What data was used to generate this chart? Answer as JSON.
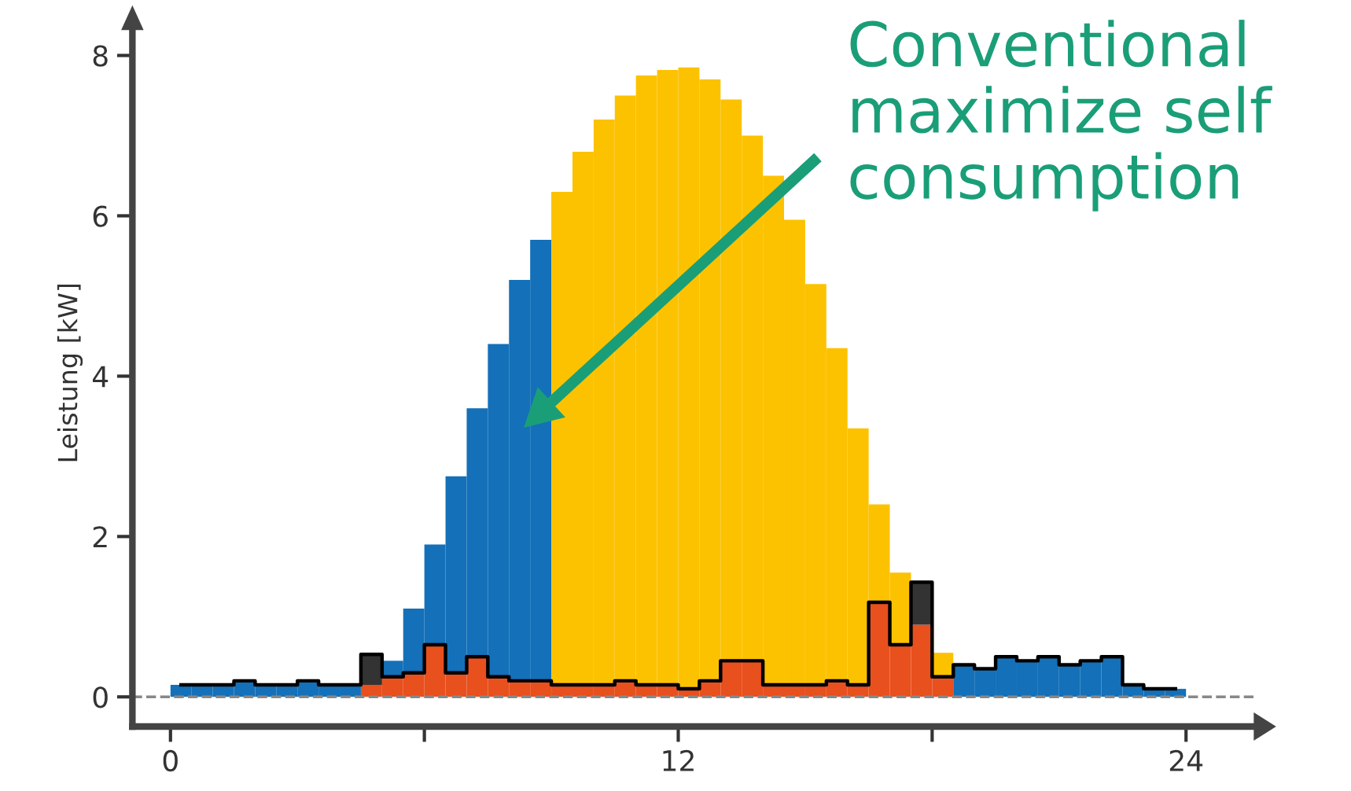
{
  "chart_data": {
    "type": "bar",
    "stacked": true,
    "ylabel": "Leistung [kW]",
    "x": [
      0.25,
      0.75,
      1.25,
      1.75,
      2.25,
      2.75,
      3.25,
      3.75,
      4.25,
      4.75,
      5.25,
      5.75,
      6.25,
      6.75,
      7.25,
      7.75,
      8.25,
      8.75,
      9.25,
      9.75,
      10.25,
      10.75,
      11.25,
      11.75,
      12.25,
      12.75,
      13.25,
      13.75,
      14.25,
      14.75,
      15.25,
      15.75,
      16.25,
      16.75,
      17.25,
      17.75,
      18.25,
      18.75,
      19.25,
      19.75,
      20.25,
      20.75,
      21.25,
      21.75,
      22.25,
      22.75,
      23.25,
      23.75
    ],
    "series": [
      {
        "color": "#e8501e",
        "values": [
          null,
          null,
          null,
          null,
          null,
          null,
          null,
          null,
          null,
          0.15,
          0.25,
          0.3,
          0.65,
          0.3,
          0.5,
          0.25,
          0.2,
          0.2,
          0.15,
          0.15,
          0.15,
          0.2,
          0.15,
          0.15,
          0.1,
          0.2,
          0.45,
          0.45,
          0.15,
          0.15,
          0.15,
          0.2,
          0.15,
          1.18,
          0.65,
          0.9,
          0.25,
          null,
          null,
          null,
          null,
          null,
          null,
          null,
          null,
          null,
          null,
          null
        ]
      },
      {
        "color": "#1470b8",
        "values": [
          0.15,
          0.15,
          0.15,
          0.2,
          0.15,
          0.15,
          0.2,
          0.15,
          0.15,
          null,
          0.2,
          0.8,
          1.25,
          2.45,
          3.1,
          4.15,
          5.0,
          5.5,
          null,
          null,
          null,
          null,
          null,
          null,
          null,
          null,
          null,
          null,
          null,
          null,
          null,
          null,
          null,
          null,
          null,
          null,
          null,
          0.4,
          0.35,
          0.5,
          0.45,
          0.5,
          0.4,
          0.45,
          0.5,
          0.15,
          0.1,
          0.1
        ]
      },
      {
        "color": "#fcc200",
        "values": [
          null,
          null,
          null,
          null,
          null,
          null,
          null,
          null,
          null,
          null,
          null,
          null,
          null,
          null,
          null,
          null,
          null,
          null,
          6.15,
          6.65,
          7.05,
          7.3,
          7.6,
          7.67,
          7.75,
          7.5,
          7.0,
          6.55,
          6.35,
          5.8,
          5.0,
          4.15,
          3.2,
          1.22,
          0.9,
          null,
          0.3,
          null,
          null,
          null,
          null,
          null,
          null,
          null,
          null,
          null,
          null,
          null
        ]
      },
      {
        "color": "#333333",
        "values": [
          null,
          null,
          null,
          null,
          null,
          null,
          null,
          null,
          null,
          0.38,
          null,
          null,
          null,
          null,
          null,
          null,
          null,
          null,
          null,
          null,
          null,
          null,
          null,
          null,
          null,
          null,
          null,
          null,
          null,
          null,
          null,
          null,
          null,
          null,
          null,
          0.53,
          null,
          null,
          null,
          null,
          null,
          null,
          null,
          null,
          null,
          null,
          null,
          null
        ]
      },
      {
        "type": "step",
        "color": "#000000",
        "values": [
          0.15,
          0.15,
          0.15,
          0.2,
          0.15,
          0.15,
          0.2,
          0.15,
          0.15,
          0.53,
          0.25,
          0.3,
          0.65,
          0.3,
          0.5,
          0.25,
          0.2,
          0.2,
          0.15,
          0.15,
          0.15,
          0.2,
          0.15,
          0.15,
          0.1,
          0.2,
          0.45,
          0.45,
          0.15,
          0.15,
          0.15,
          0.2,
          0.15,
          1.18,
          0.65,
          1.43,
          0.25,
          0.4,
          0.35,
          0.5,
          0.45,
          0.5,
          0.4,
          0.45,
          0.5,
          0.15,
          0.1,
          0.1
        ]
      }
    ],
    "xlim": [
      -0.9,
      25.6
    ],
    "xticks": [
      0,
      {
        "value": 6,
        "label": null
      },
      12,
      {
        "value": 18,
        "label": null
      },
      24
    ],
    "ylim": [
      -0.37,
      8.45
    ],
    "yticks": [
      0,
      2,
      4,
      6,
      8
    ],
    "ref_lines": [
      {
        "axis": "y",
        "value": 0,
        "label": null,
        "color": "#888888",
        "line_style": "dashed"
      }
    ],
    "annotations": [
      "Conventional\nmaximize self\nconsumption"
    ],
    "grid": false,
    "legend": false,
    "marker": "none"
  }
}
